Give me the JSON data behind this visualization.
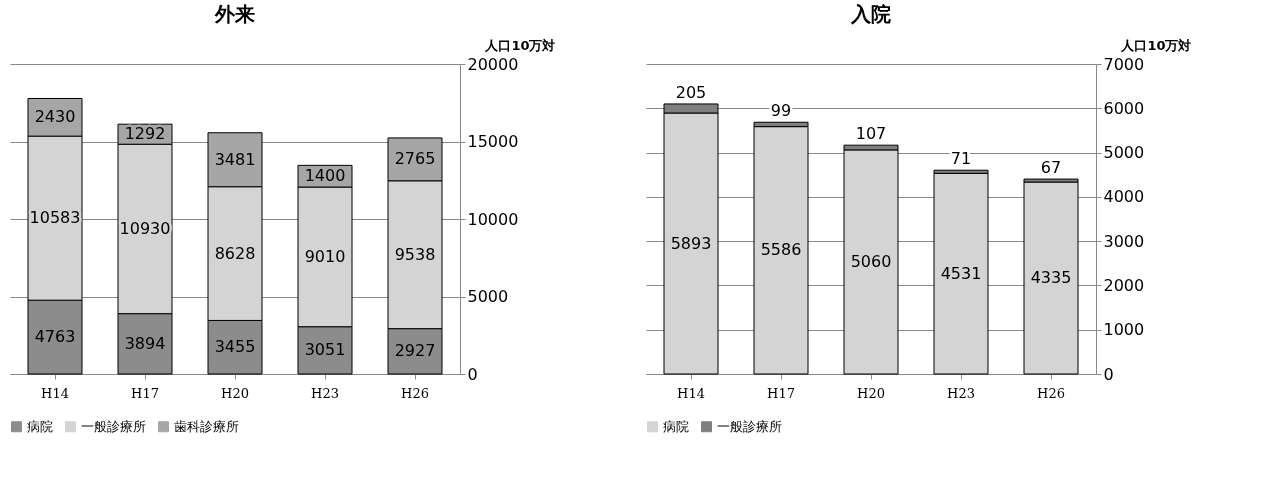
{
  "chart_data": [
    {
      "type": "bar",
      "title": "外来",
      "ylabel": "人口10万対",
      "categories": [
        "H14",
        "H17",
        "H20",
        "H23",
        "H26"
      ],
      "stacked": true,
      "data_labels": true,
      "grid": "y",
      "legend": "bottom",
      "ylim": [
        0,
        20000
      ],
      "yticks": [
        0,
        5000,
        10000,
        15000,
        20000
      ],
      "series": [
        {
          "name": "病院",
          "color": "#8c8c8c",
          "values": [
            4763,
            3894,
            3455,
            3051,
            2927
          ]
        },
        {
          "name": "一般診療所",
          "color": "#d4d4d4",
          "values": [
            10583,
            10930,
            8628,
            9010,
            9538
          ]
        },
        {
          "name": "歯科診療所",
          "color": "#a6a6a6",
          "values": [
            2430,
            1292,
            3481,
            1400,
            2765
          ]
        }
      ]
    },
    {
      "type": "bar",
      "title": "入院",
      "ylabel": "人口10万対",
      "categories": [
        "H14",
        "H17",
        "H20",
        "H23",
        "H26"
      ],
      "stacked": true,
      "data_labels": true,
      "grid": "y",
      "legend": "bottom",
      "ylim": [
        0,
        7000
      ],
      "yticks": [
        0,
        1000,
        2000,
        3000,
        4000,
        5000,
        6000,
        7000
      ],
      "series": [
        {
          "name": "病院",
          "color": "#d4d4d4",
          "values": [
            5893,
            5586,
            5060,
            4531,
            4335
          ]
        },
        {
          "name": "一般診療所",
          "color": "#7f7f7f",
          "values": [
            205,
            99,
            107,
            71,
            67
          ]
        }
      ]
    }
  ]
}
